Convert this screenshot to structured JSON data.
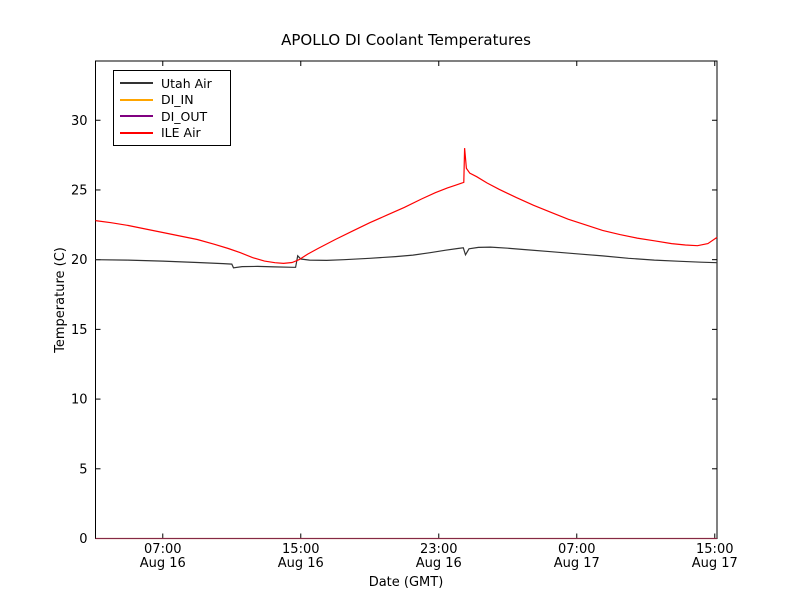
{
  "title": "APOLLO DI Coolant Temperatures",
  "chart_data": {
    "type": "line",
    "title": "APOLLO DI Coolant Temperatures",
    "xlabel": "Date (GMT)",
    "ylabel": "Temperature (C)",
    "x_unit": "hours since Aug 16 00:00 GMT",
    "xlim_hours": [
      3.1,
      39.13
    ],
    "ylim": [
      0,
      34.25
    ],
    "yticks": [
      0,
      5,
      10,
      15,
      20,
      25,
      30
    ],
    "xticks": [
      {
        "hour": 7,
        "time": "07:00",
        "date": "Aug 16"
      },
      {
        "hour": 15,
        "time": "15:00",
        "date": "Aug 16"
      },
      {
        "hour": 23,
        "time": "23:00",
        "date": "Aug 16"
      },
      {
        "hour": 31,
        "time": "07:00",
        "date": "Aug 17"
      },
      {
        "hour": 39,
        "time": "15:00",
        "date": "Aug 17"
      }
    ],
    "grid": false,
    "legend_position": "upper left",
    "series": [
      {
        "name": "Utah Air",
        "color": "#333333",
        "points": [
          [
            3.1,
            20.0
          ],
          [
            5,
            19.97
          ],
          [
            7,
            19.9
          ],
          [
            9,
            19.8
          ],
          [
            10.5,
            19.72
          ],
          [
            11.0,
            19.68
          ],
          [
            11.1,
            19.42
          ],
          [
            11.6,
            19.5
          ],
          [
            12.5,
            19.52
          ],
          [
            13.5,
            19.48
          ],
          [
            14.55,
            19.45
          ],
          [
            14.7,
            19.45
          ],
          [
            14.82,
            20.28
          ],
          [
            15.0,
            20.05
          ],
          [
            15.5,
            19.97
          ],
          [
            16.5,
            19.95
          ],
          [
            17.5,
            20.0
          ],
          [
            19,
            20.1
          ],
          [
            20.5,
            20.22
          ],
          [
            21.5,
            20.33
          ],
          [
            22.5,
            20.5
          ],
          [
            23.4,
            20.68
          ],
          [
            24.1,
            20.8
          ],
          [
            24.42,
            20.85
          ],
          [
            24.55,
            20.35
          ],
          [
            24.75,
            20.78
          ],
          [
            25.3,
            20.88
          ],
          [
            26,
            20.9
          ],
          [
            27,
            20.82
          ],
          [
            28,
            20.72
          ],
          [
            29.5,
            20.57
          ],
          [
            31,
            20.42
          ],
          [
            32.5,
            20.27
          ],
          [
            34,
            20.1
          ],
          [
            35.5,
            19.97
          ],
          [
            37,
            19.88
          ],
          [
            38.2,
            19.82
          ],
          [
            39.13,
            19.78
          ]
        ]
      },
      {
        "name": "DI_IN",
        "color": "#ffa500",
        "points": [
          [
            3.1,
            0
          ],
          [
            39.13,
            0
          ]
        ]
      },
      {
        "name": "DI_OUT",
        "color": "#800080",
        "points": [
          [
            3.1,
            0
          ],
          [
            39.13,
            0
          ]
        ]
      },
      {
        "name": "ILE Air",
        "color": "#ff0000",
        "points": [
          [
            3.1,
            22.8
          ],
          [
            4,
            22.65
          ],
          [
            5,
            22.45
          ],
          [
            6,
            22.2
          ],
          [
            7,
            21.95
          ],
          [
            8,
            21.7
          ],
          [
            9,
            21.45
          ],
          [
            10,
            21.1
          ],
          [
            10.8,
            20.8
          ],
          [
            11.5,
            20.5
          ],
          [
            12.2,
            20.15
          ],
          [
            12.9,
            19.9
          ],
          [
            13.5,
            19.78
          ],
          [
            14.0,
            19.73
          ],
          [
            14.5,
            19.8
          ],
          [
            14.9,
            20.0
          ],
          [
            15.4,
            20.4
          ],
          [
            16,
            20.8
          ],
          [
            17,
            21.45
          ],
          [
            18,
            22.05
          ],
          [
            19,
            22.65
          ],
          [
            20,
            23.2
          ],
          [
            21,
            23.75
          ],
          [
            22,
            24.35
          ],
          [
            22.8,
            24.8
          ],
          [
            23.5,
            25.15
          ],
          [
            24.0,
            25.35
          ],
          [
            24.35,
            25.5
          ],
          [
            24.45,
            25.55
          ],
          [
            24.5,
            28.0
          ],
          [
            24.6,
            26.55
          ],
          [
            24.8,
            26.2
          ],
          [
            25.2,
            25.95
          ],
          [
            25.8,
            25.5
          ],
          [
            26.5,
            25.05
          ],
          [
            27.5,
            24.45
          ],
          [
            28.5,
            23.9
          ],
          [
            29.5,
            23.4
          ],
          [
            30.5,
            22.9
          ],
          [
            31.5,
            22.5
          ],
          [
            32.5,
            22.1
          ],
          [
            33.5,
            21.8
          ],
          [
            34.5,
            21.55
          ],
          [
            35.5,
            21.35
          ],
          [
            36.5,
            21.15
          ],
          [
            37.3,
            21.05
          ],
          [
            38,
            21.0
          ],
          [
            38.6,
            21.15
          ],
          [
            39.13,
            21.6
          ]
        ]
      }
    ]
  }
}
